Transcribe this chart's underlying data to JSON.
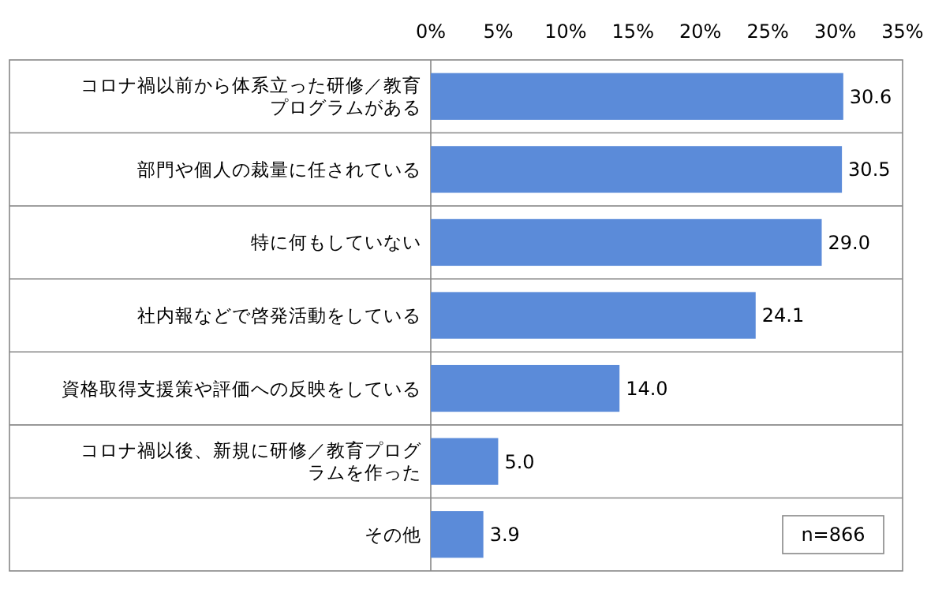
{
  "chart_data": {
    "type": "bar",
    "orientation": "horizontal",
    "categories": [
      "コロナ禍以前から体系立った研修／教育プログラムがある",
      "部門や個人の裁量に任されている",
      "特に何もしていない",
      "社内報などで啓発活動をしている",
      "資格取得支援策や評価への反映をしている",
      "コロナ禍以後、新規に研修／教育プログラムを作った",
      "その他"
    ],
    "values": [
      30.6,
      30.5,
      29.0,
      24.1,
      14.0,
      5.0,
      3.9
    ],
    "value_labels": [
      "30.6",
      "30.5",
      "29.0",
      "24.1",
      "14.0",
      "5.0",
      "3.9"
    ],
    "color": "#5b8bd9",
    "xlim": [
      0,
      35
    ],
    "xticks": [
      {
        "value": 0,
        "label": "0%"
      },
      {
        "value": 5,
        "label": "5%"
      },
      {
        "value": 10,
        "label": "10%"
      },
      {
        "value": 15,
        "label": "15%"
      },
      {
        "value": 20,
        "label": "20%"
      },
      {
        "value": 25,
        "label": "25%"
      },
      {
        "value": 30,
        "label": "30%"
      },
      {
        "value": 35,
        "label": "35%"
      }
    ],
    "grid": false,
    "annotations": [
      "n=866"
    ]
  }
}
